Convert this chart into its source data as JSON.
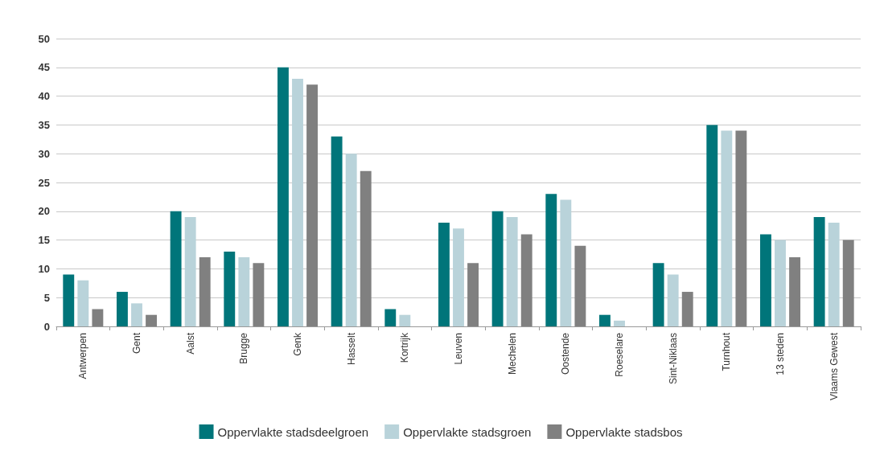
{
  "chart_data": {
    "type": "bar",
    "categories": [
      "Antwerpen",
      "Gent",
      "Aalst",
      "Brugge",
      "Genk",
      "Hasselt",
      "Kortrijk",
      "Leuven",
      "Mechelen",
      "Oostende",
      "Roeselare",
      "Sint-Niklaas",
      "Turnhout",
      "13 steden",
      "Vlaams Gewest"
    ],
    "series": [
      {
        "name": "Oppervlakte stadsdeelgroen",
        "color": "#00757a",
        "values": [
          9,
          6,
          20,
          13,
          45,
          33,
          3,
          18,
          20,
          23,
          2,
          11,
          35,
          16,
          19
        ]
      },
      {
        "name": "Oppervlakte stadsgroen",
        "color": "#b9d3da",
        "values": [
          8,
          4,
          19,
          12,
          43,
          30,
          2,
          17,
          19,
          22,
          1,
          9,
          34,
          15,
          18
        ]
      },
      {
        "name": "Oppervlakte stadsbos",
        "color": "#808080",
        "values": [
          3,
          2,
          12,
          11,
          42,
          27,
          0,
          11,
          16,
          14,
          0,
          6,
          34,
          12,
          15
        ]
      }
    ],
    "ylim": [
      0,
      50
    ],
    "yticks": [
      0,
      5,
      10,
      15,
      20,
      25,
      30,
      35,
      40,
      45,
      50
    ],
    "grid": "y",
    "legend": "bottom"
  }
}
